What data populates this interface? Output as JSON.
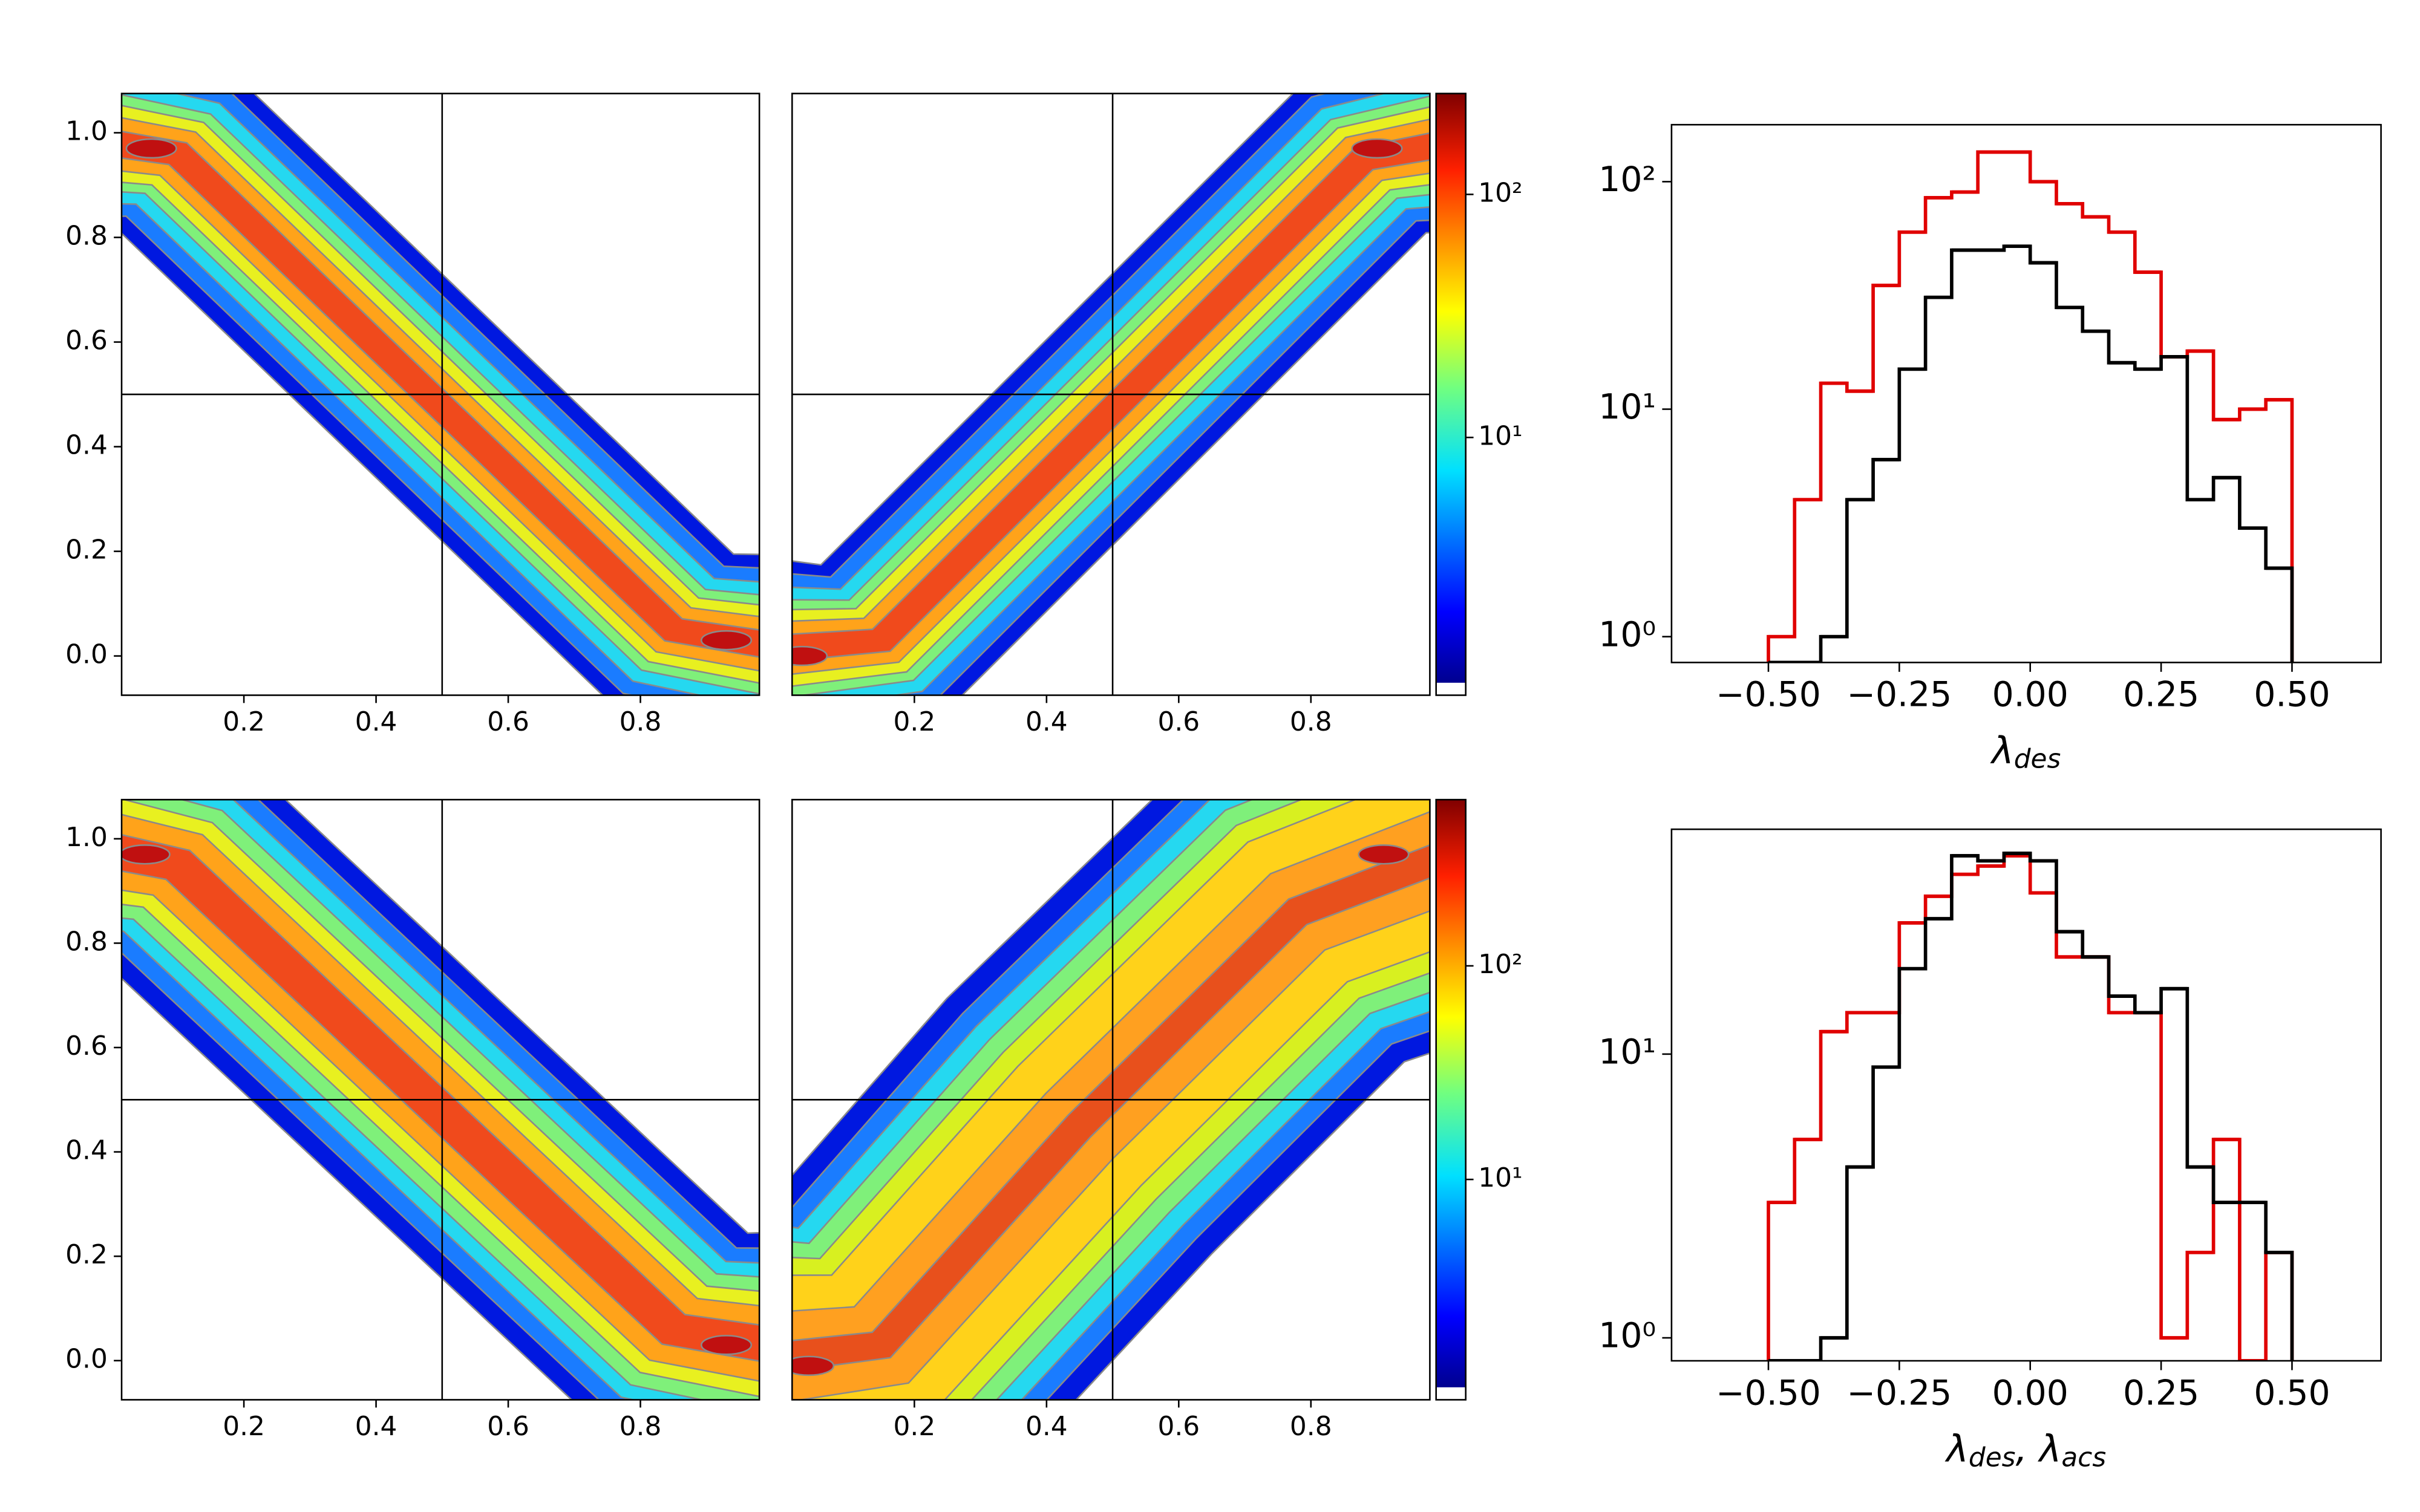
{
  "chart_data": [
    {
      "type": "contour",
      "xlim": [
        0.015,
        0.98
      ],
      "ylim": [
        -0.075,
        1.075
      ],
      "xticks": [
        0.2,
        0.4,
        0.6,
        0.8
      ],
      "yticks": [
        {
          "value": 0,
          "label": "0.0"
        },
        0.2,
        0.4,
        0.6,
        0.8,
        {
          "value": 1,
          "label": "1.0"
        }
      ],
      "hline": 0.5,
      "vline": 0.5
    },
    {
      "type": "contour",
      "xlim": [
        0.015,
        0.98
      ],
      "ylim": [
        -0.075,
        1.075
      ],
      "xticks": [
        0.2,
        0.4,
        0.6,
        0.8
      ],
      "hline": 0.5,
      "vline": 0.5
    },
    {
      "type": "colorbar",
      "clim": [
        0.87,
        260
      ],
      "log": true,
      "cticks": [
        {
          "value": 10,
          "label": "10¹"
        },
        {
          "value": 100,
          "label": "10²"
        }
      ]
    },
    {
      "type": "histogram",
      "log_y": true,
      "xlim": [
        -0.685,
        0.67
      ],
      "ylim": [
        0.77,
        178
      ],
      "xticks": [
        {
          "value": -0.5,
          "label": "−0.50"
        },
        {
          "value": -0.25,
          "label": "−0.25"
        },
        {
          "value": 0,
          "label": "0.00"
        },
        {
          "value": 0.25,
          "label": "0.25"
        },
        {
          "value": 0.5,
          "label": "0.50"
        }
      ],
      "yticks": [
        {
          "value": 1,
          "label": "10⁰"
        },
        {
          "value": 10,
          "label": "10¹"
        },
        {
          "value": 100,
          "label": "10²"
        }
      ],
      "xlabel": [
        {
          "text": "λ"
        },
        {
          "text": "des",
          "sub": true
        }
      ],
      "bins": [
        -0.5,
        -0.45,
        -0.4,
        -0.35,
        -0.3,
        -0.25,
        -0.2,
        -0.15,
        -0.1,
        -0.05,
        0,
        0.05,
        0.1,
        0.15,
        0.2,
        0.25,
        0.3,
        0.35,
        0.4,
        0.45,
        0.5
      ],
      "series": [
        {
          "color": "#e00000",
          "values": [
            1,
            4,
            13,
            12,
            35,
            60,
            85,
            90,
            135,
            135,
            100,
            80,
            70,
            60,
            40,
            17,
            18,
            9,
            10,
            11
          ]
        },
        {
          "color": "#000000",
          "values": [
            0,
            0,
            1,
            4,
            6,
            15,
            31,
            50,
            50,
            52,
            44,
            28,
            22,
            16,
            15,
            17,
            4,
            5,
            3,
            2
          ]
        }
      ]
    },
    {
      "type": "contour",
      "xlim": [
        0.015,
        0.98
      ],
      "ylim": [
        -0.075,
        1.075
      ],
      "xticks": [
        0.2,
        0.4,
        0.6,
        0.8
      ],
      "yticks": [
        {
          "value": 0,
          "label": "0.0"
        },
        0.2,
        0.4,
        0.6,
        0.8,
        {
          "value": 1,
          "label": "1.0"
        }
      ],
      "hline": 0.5,
      "vline": 0.5
    },
    {
      "type": "contour",
      "xlim": [
        0.015,
        0.98
      ],
      "ylim": [
        -0.075,
        1.075
      ],
      "xticks": [
        0.2,
        0.4,
        0.6,
        0.8
      ],
      "hline": 0.5,
      "vline": 0.5
    },
    {
      "type": "colorbar",
      "clim": [
        0.93,
        600
      ],
      "log": true,
      "cticks": [
        {
          "value": 10,
          "label": "10¹"
        },
        {
          "value": 100,
          "label": "10²"
        }
      ]
    },
    {
      "type": "histogram",
      "log_y": true,
      "xlim": [
        -0.685,
        0.67
      ],
      "ylim": [
        0.83,
        62
      ],
      "xticks": [
        {
          "value": -0.5,
          "label": "−0.50"
        },
        {
          "value": -0.25,
          "label": "−0.25"
        },
        {
          "value": 0,
          "label": "0.00"
        },
        {
          "value": 0.25,
          "label": "0.25"
        },
        {
          "value": 0.5,
          "label": "0.50"
        }
      ],
      "yticks": [
        {
          "value": 1,
          "label": "10⁰"
        },
        {
          "value": 10,
          "label": "10¹"
        }
      ],
      "xlabel": [
        {
          "text": "λ"
        },
        {
          "text": "des",
          "sub": true
        },
        {
          "text": ", λ"
        },
        {
          "text": "acs",
          "sub": true
        }
      ],
      "bins": [
        -0.5,
        -0.45,
        -0.4,
        -0.35,
        -0.3,
        -0.25,
        -0.2,
        -0.15,
        -0.1,
        -0.05,
        0,
        0.05,
        0.1,
        0.15,
        0.2,
        0.25,
        0.3,
        0.35,
        0.4,
        0.45,
        0.5
      ],
      "series": [
        {
          "color": "#e00000",
          "values": [
            3,
            5,
            12,
            14,
            14,
            29,
            36,
            43,
            46,
            50,
            37,
            22,
            22,
            14,
            14,
            1,
            2,
            5,
            0,
            2
          ]
        },
        {
          "color": "#000000",
          "values": [
            0,
            0,
            1,
            4,
            9,
            20,
            30,
            50,
            48,
            51,
            48,
            27,
            22,
            16,
            14,
            17,
            4,
            3,
            3,
            2
          ]
        }
      ]
    }
  ]
}
